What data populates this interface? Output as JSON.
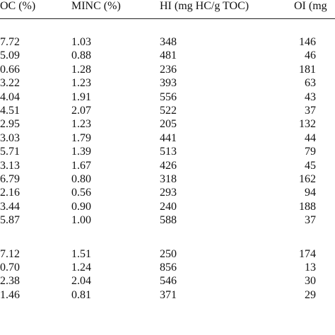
{
  "table": {
    "headers": [
      "OC (%)",
      "MINC (%)",
      "HI (mg HC/g TOC)",
      "OI (mg"
    ],
    "groups": [
      {
        "rows": [
          [
            "7.72",
            "1.03",
            "348",
            "146"
          ],
          [
            "5.09",
            "0.88",
            "481",
            "46"
          ],
          [
            "0.66",
            "1.28",
            "236",
            "181"
          ],
          [
            "3.22",
            "1.23",
            "393",
            "63"
          ],
          [
            "4.04",
            "1.91",
            "556",
            "43"
          ],
          [
            "4.51",
            "2.07",
            "522",
            "37"
          ],
          [
            "2.95",
            "1.23",
            "205",
            "132"
          ],
          [
            "3.03",
            "1.79",
            "441",
            "44"
          ],
          [
            "5.71",
            "1.39",
            "513",
            "79"
          ],
          [
            "3.13",
            "1.67",
            "426",
            "45"
          ],
          [
            "6.79",
            "0.80",
            "318",
            "162"
          ],
          [
            "2.16",
            "0.56",
            "293",
            "94"
          ],
          [
            "3.44",
            "0.90",
            "240",
            "188"
          ],
          [
            "5.87",
            "1.00",
            "588",
            "37"
          ]
        ]
      },
      {
        "rows": [
          [
            "7.12",
            "1.51",
            "250",
            "174"
          ],
          [
            "0.70",
            "1.24",
            "856",
            "13"
          ],
          [
            "2.38",
            "2.04",
            "546",
            "30"
          ],
          [
            "1.46",
            "0.81",
            "371",
            "29"
          ]
        ]
      }
    ]
  }
}
